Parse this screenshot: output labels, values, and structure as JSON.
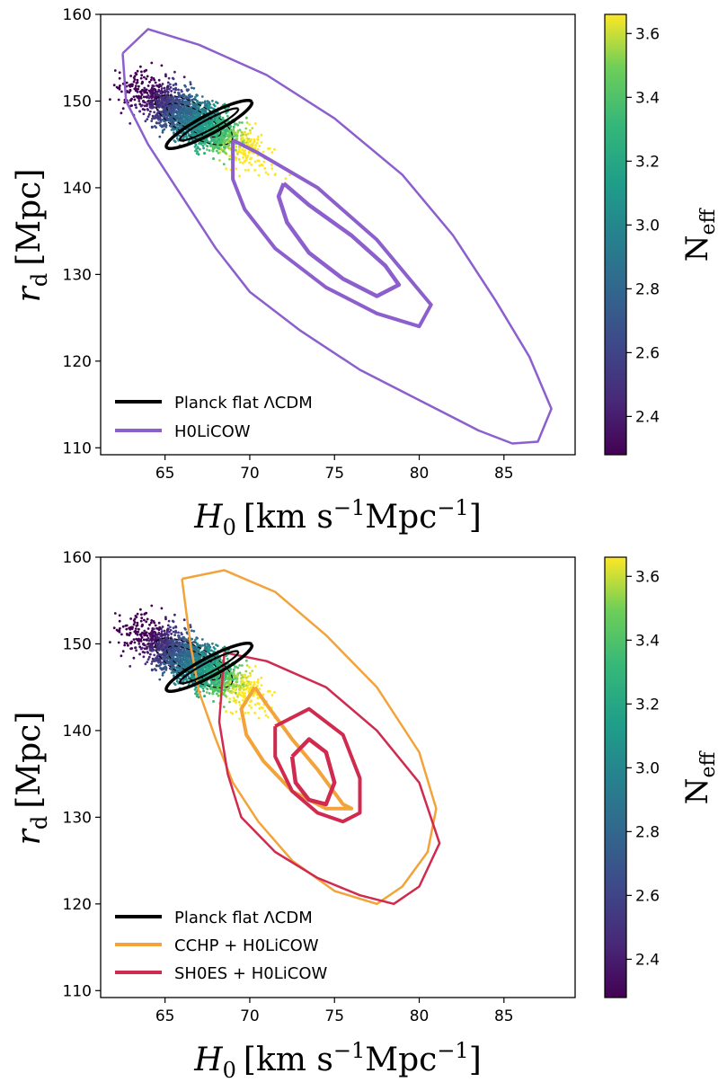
{
  "colors": {
    "planck": "#000000",
    "h0licow": "#8c5fcd",
    "cchp": "#f2a33a",
    "sh0es": "#d02b4f"
  },
  "chart_data": [
    {
      "type": "scatter",
      "panel": "top",
      "xlabel_main": "H",
      "xlabel_sub": "0",
      "xlabel_unit": "[km s",
      "xlabel_sup1": "−1",
      "xlabel_unit2": "Mpc",
      "xlabel_sup2": "−1",
      "xlabel_close": "]",
      "ylabel_main": "r",
      "ylabel_sub": "d",
      "ylabel_unit": "[Mpc]",
      "xlim": [
        61.2,
        89.2
      ],
      "ylim": [
        109.2,
        160
      ],
      "xticks": [
        65,
        70,
        75,
        80,
        85
      ],
      "yticks": [
        110,
        120,
        130,
        140,
        150,
        160
      ],
      "colorbar": {
        "label_main": "N",
        "label_sub": "eff",
        "range": [
          2.28,
          3.66
        ],
        "ticks": [
          2.4,
          2.6,
          2.8,
          3.0,
          3.2,
          3.4,
          3.6
        ],
        "tick_labels": [
          "2.4",
          "2.6",
          "2.8",
          "3.0",
          "3.2",
          "3.4",
          "3.6"
        ]
      },
      "legend": [
        {
          "label": "Planck flat ΛCDM",
          "color": "#000000"
        },
        {
          "label": "H0LiCOW",
          "color": "#8c5fcd"
        }
      ],
      "contours": [
        {
          "series": "H0LiCOW 95%",
          "color": "#8c5fcd",
          "width": 2.5,
          "points": [
            [
              62.5,
              155.5
            ],
            [
              64,
              158.3
            ],
            [
              67,
              156.5
            ],
            [
              71,
              153
            ],
            [
              75,
              148
            ],
            [
              79,
              141.5
            ],
            [
              82,
              134.5
            ],
            [
              84.5,
              127
            ],
            [
              86.5,
              120.5
            ],
            [
              87.8,
              114.5
            ],
            [
              87,
              110.7
            ],
            [
              85.5,
              110.5
            ],
            [
              83.5,
              112
            ],
            [
              80,
              115.5
            ],
            [
              76.5,
              119
            ],
            [
              73,
              123.5
            ],
            [
              70,
              128
            ],
            [
              68,
              133
            ],
            [
              66,
              139
            ],
            [
              64,
              145
            ],
            [
              62.7,
              150
            ],
            [
              62.5,
              155.5
            ]
          ]
        },
        {
          "series": "H0LiCOW 68%",
          "color": "#8c5fcd",
          "width": 4,
          "points": [
            [
              69,
              145.5
            ],
            [
              70.5,
              144
            ],
            [
              74,
              140
            ],
            [
              77.5,
              134
            ],
            [
              80.7,
              126.5
            ],
            [
              80,
              124
            ],
            [
              77.5,
              125.5
            ],
            [
              74.5,
              128.5
            ],
            [
              71.5,
              133
            ],
            [
              69.7,
              137.5
            ],
            [
              69,
              141
            ],
            [
              69,
              145.5
            ]
          ]
        },
        {
          "series": "H0LiCOW 39%",
          "color": "#8c5fcd",
          "width": 4.5,
          "points": [
            [
              72,
              140.5
            ],
            [
              73.5,
              138
            ],
            [
              76,
              134.5
            ],
            [
              78,
              131
            ],
            [
              78.8,
              128.8
            ],
            [
              77.5,
              127.5
            ],
            [
              75.5,
              129.5
            ],
            [
              73.5,
              132.5
            ],
            [
              72.2,
              136
            ],
            [
              71.7,
              139
            ],
            [
              72,
              140.5
            ]
          ]
        },
        {
          "series": "Planck flat ΛCDM 1σ",
          "color": "#000000",
          "width": 3.5,
          "ellipse": {
            "cx": 67.6,
            "cy": 147.3,
            "a": 1.9,
            "b": 0.45,
            "angle": -28
          }
        },
        {
          "series": "Planck flat ΛCDM 2σ",
          "color": "#000000",
          "width": 2.2,
          "ellipse": {
            "cx": 67.6,
            "cy": 147.3,
            "a": 1.3,
            "b": 0.25,
            "angle": -28
          }
        }
      ],
      "mcmc_cloud": {
        "center": [
          66.7,
          147.8
        ],
        "major_axis_dir": [
          70.5,
          143.5
        ],
        "param_range": [
          2.28,
          3.66
        ]
      }
    },
    {
      "type": "scatter",
      "panel": "bottom",
      "xlabel_main": "H",
      "xlabel_sub": "0",
      "xlabel_unit": "[km s",
      "xlabel_sup1": "−1",
      "xlabel_unit2": "Mpc",
      "xlabel_sup2": "−1",
      "xlabel_close": "]",
      "ylabel_main": "r",
      "ylabel_sub": "d",
      "ylabel_unit": "[Mpc]",
      "xlim": [
        61.2,
        89.2
      ],
      "ylim": [
        109.2,
        160
      ],
      "xticks": [
        65,
        70,
        75,
        80,
        85
      ],
      "yticks": [
        110,
        120,
        130,
        140,
        150,
        160
      ],
      "colorbar": {
        "label_main": "N",
        "label_sub": "eff",
        "range": [
          2.28,
          3.66
        ],
        "ticks": [
          2.4,
          2.6,
          2.8,
          3.0,
          3.2,
          3.4,
          3.6
        ],
        "tick_labels": [
          "2.4",
          "2.6",
          "2.8",
          "3.0",
          "3.2",
          "3.4",
          "3.6"
        ]
      },
      "legend": [
        {
          "label": "Planck flat ΛCDM",
          "color": "#000000"
        },
        {
          "label": "CCHP + H0LiCOW",
          "color": "#f2a33a"
        },
        {
          "label": "SH0ES + H0LiCOW",
          "color": "#d02b4f"
        }
      ],
      "contours": [
        {
          "series": "CCHP + H0LiCOW 95%",
          "color": "#f2a33a",
          "width": 2.5,
          "points": [
            [
              66,
              157.5
            ],
            [
              68.5,
              158.5
            ],
            [
              71.5,
              156
            ],
            [
              74.5,
              151
            ],
            [
              77.5,
              145
            ],
            [
              80,
              137.5
            ],
            [
              81,
              131
            ],
            [
              80.5,
              126
            ],
            [
              79,
              122
            ],
            [
              77.5,
              120
            ],
            [
              75,
              121.5
            ],
            [
              72.5,
              125
            ],
            [
              70.5,
              129.5
            ],
            [
              69,
              134
            ],
            [
              68,
              139
            ],
            [
              67,
              144.5
            ],
            [
              66.5,
              150
            ],
            [
              66,
              157.5
            ]
          ]
        },
        {
          "series": "CCHP + H0LiCOW 68%",
          "color": "#f2a33a",
          "width": 4,
          "points": [
            [
              70.3,
              145
            ],
            [
              71,
              143
            ],
            [
              72.5,
              139
            ],
            [
              74,
              135.5
            ],
            [
              75.5,
              131.5
            ],
            [
              76,
              131
            ],
            [
              74.5,
              131
            ],
            [
              72.5,
              133
            ],
            [
              70.8,
              136.5
            ],
            [
              69.8,
              139.5
            ],
            [
              69.5,
              142.5
            ],
            [
              70.3,
              145
            ]
          ]
        },
        {
          "series": "SH0ES + H0LiCOW 95%",
          "color": "#d02b4f",
          "width": 2.5,
          "points": [
            [
              68.5,
              149
            ],
            [
              71,
              148
            ],
            [
              74.5,
              145
            ],
            [
              77.5,
              140
            ],
            [
              80,
              134
            ],
            [
              81.2,
              127
            ],
            [
              80,
              122
            ],
            [
              78.5,
              120
            ],
            [
              76.5,
              121
            ],
            [
              74,
              123
            ],
            [
              71.5,
              126
            ],
            [
              69.5,
              130
            ],
            [
              68.7,
              135
            ],
            [
              68.2,
              141
            ],
            [
              68.5,
              149
            ]
          ]
        },
        {
          "series": "SH0ES + H0LiCOW 68%",
          "color": "#d02b4f",
          "width": 4,
          "points": [
            [
              71.5,
              140.5
            ],
            [
              73.5,
              142.5
            ],
            [
              75.5,
              139.5
            ],
            [
              76.5,
              134.5
            ],
            [
              76.5,
              130.5
            ],
            [
              75.5,
              129.5
            ],
            [
              74,
              130.5
            ],
            [
              72.5,
              133
            ],
            [
              71.5,
              137
            ],
            [
              71.5,
              140.5
            ]
          ]
        },
        {
          "series": "SH0ES + H0LiCOW 39%",
          "color": "#d02b4f",
          "width": 4.5,
          "points": [
            [
              72.5,
              137
            ],
            [
              73.5,
              139
            ],
            [
              74.5,
              137.5
            ],
            [
              75,
              134
            ],
            [
              74.5,
              131.5
            ],
            [
              73.5,
              132
            ],
            [
              72.7,
              134
            ],
            [
              72.5,
              137
            ]
          ]
        },
        {
          "series": "Planck flat ΛCDM 1σ",
          "color": "#000000",
          "width": 3.5,
          "ellipse": {
            "cx": 67.6,
            "cy": 147.3,
            "a": 1.9,
            "b": 0.45,
            "angle": -28
          }
        },
        {
          "series": "Planck flat ΛCDM 2σ",
          "color": "#000000",
          "width": 2.2,
          "ellipse": {
            "cx": 67.6,
            "cy": 147.3,
            "a": 1.3,
            "b": 0.25,
            "angle": -28
          }
        }
      ],
      "mcmc_cloud": {
        "center": [
          66.7,
          147.8
        ],
        "major_axis_dir": [
          70.5,
          143.5
        ],
        "param_range": [
          2.28,
          3.66
        ]
      }
    }
  ]
}
